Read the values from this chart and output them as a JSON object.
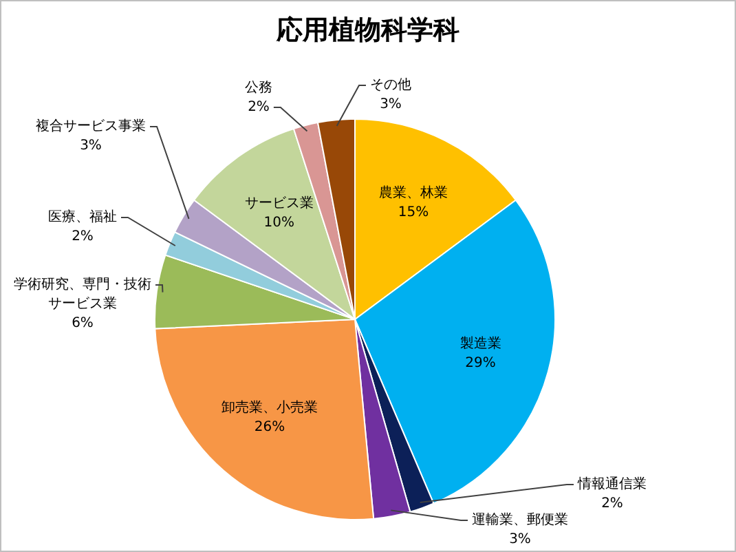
{
  "chart_data": {
    "type": "pie",
    "title": "応用植物科学科",
    "categories": [
      "農業、林業",
      "製造業",
      "情報通信業",
      "運輸業、郵便業",
      "卸売業、小売業",
      "学術研究、専門・技術サービス業",
      "医療、福祉",
      "複合サービス事業",
      "サービス業",
      "公務",
      "その他"
    ],
    "values": [
      15,
      29,
      2,
      3,
      26,
      6,
      2,
      3,
      10,
      2,
      3
    ],
    "colors": [
      "#ffc000",
      "#00b0f0",
      "#0c2058",
      "#7030a0",
      "#f79646",
      "#9bbb59",
      "#92cddc",
      "#b3a2c7",
      "#c3d69b",
      "#d99694",
      "#984807"
    ],
    "value_labels": [
      "15%",
      "29%",
      "2%",
      "3%",
      "26%",
      "6%",
      "2%",
      "3%",
      "10%",
      "2%",
      "3%"
    ]
  }
}
